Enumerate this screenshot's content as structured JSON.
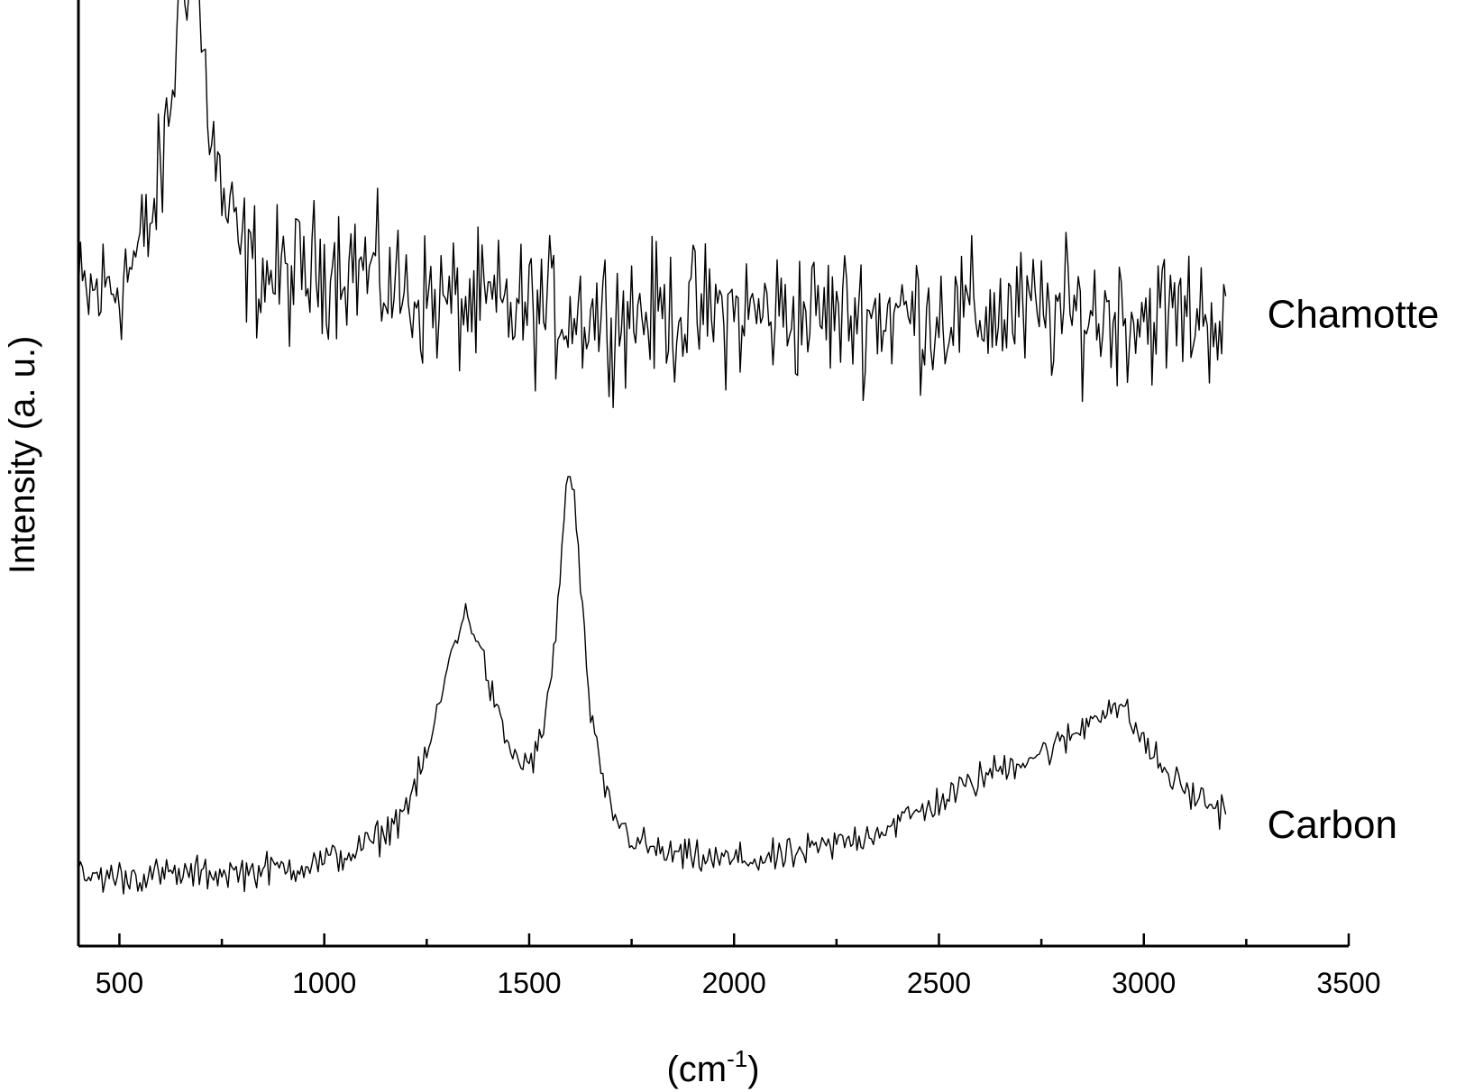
{
  "chart_data": {
    "type": "line",
    "xlabel": "(cm",
    "xlabel_superscript": "-1",
    "xlabel_close": ")",
    "ylabel": "Intensity (a. u.)",
    "xlim": [
      400,
      3500
    ],
    "x_ticks": [
      500,
      1000,
      1500,
      2000,
      2500,
      3000,
      3500
    ],
    "x_minor_ticks": [
      750,
      1250,
      1750,
      2250,
      2750,
      3250
    ],
    "y_tick_labels": false,
    "grid": false,
    "legend": "none",
    "x_range": [
      400,
      3200
    ],
    "x_step": 5,
    "line_color": "#000000",
    "series": [
      {
        "name": "Chamotte",
        "baseline": 0.68,
        "noise_amplitude": 0.06,
        "peaks": [
          {
            "position": 670,
            "height": 0.38,
            "width": 55
          },
          {
            "position": 1050,
            "height": 0.05,
            "width": 120
          }
        ]
      },
      {
        "name": "Carbon",
        "baseline": 0.07,
        "noise_amplitude": 0.015,
        "peaks": [
          {
            "position": 1345,
            "height": 0.27,
            "width": 90
          },
          {
            "position": 1600,
            "height": 0.4,
            "width": 40
          },
          {
            "position": 2700,
            "height": 0.08,
            "width": 300
          },
          {
            "position": 2930,
            "height": 0.1,
            "width": 110
          }
        ],
        "broad_background": {
          "start": 2100,
          "end": 3200,
          "height": 0.04
        }
      }
    ]
  }
}
